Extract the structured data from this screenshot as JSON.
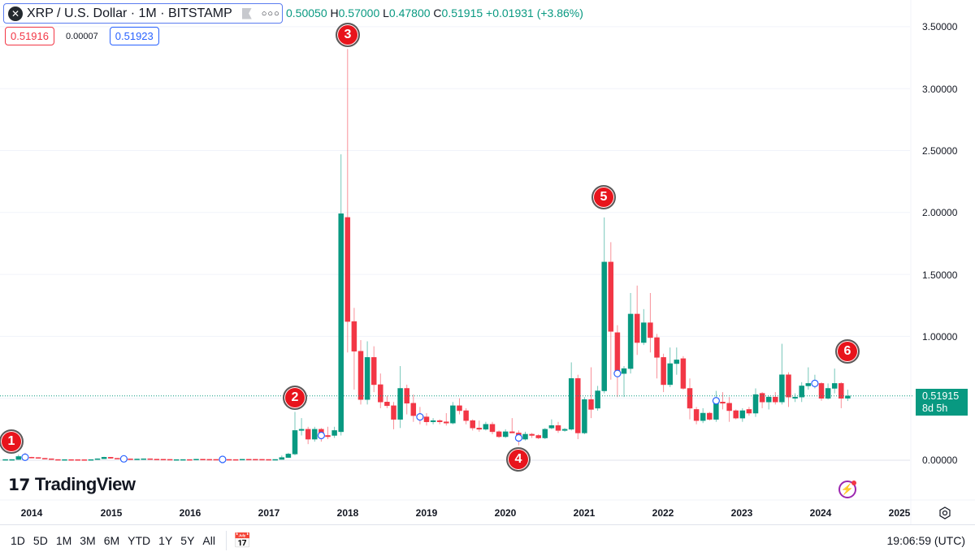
{
  "header": {
    "symbol_icon": "xrp-logo-icon",
    "title": "XRP / U.S. Dollar · 1M · BITSTAMP",
    "ohlc": {
      "o_value": "0.50050",
      "h_label": "H",
      "h_value": "0.57000",
      "l_label": "L",
      "l_value": "0.47800",
      "c_label": "C",
      "c_value": "0.51915",
      "change": "+0.01931 (+3.86%)"
    },
    "bid": "0.51916",
    "spread": "0.00007",
    "ask": "0.51923"
  },
  "price_axis": [
    "3.50000",
    "3.00000",
    "2.50000",
    "2.00000",
    "1.50000",
    "1.00000",
    "0.00000"
  ],
  "current_price": {
    "value": "0.51915",
    "countdown": "8d 5h"
  },
  "time_axis": [
    "2014",
    "2015",
    "2016",
    "2017",
    "2018",
    "2019",
    "2020",
    "2021",
    "2022",
    "2023",
    "2024",
    "2025"
  ],
  "markers": [
    "1",
    "2",
    "3",
    "4",
    "5",
    "6"
  ],
  "logo": "TradingView",
  "bottom_bar": {
    "ranges": [
      "1D",
      "5D",
      "1M",
      "3M",
      "6M",
      "YTD",
      "1Y",
      "5Y",
      "All"
    ],
    "clock": "19:06:59 (UTC)"
  },
  "colors": {
    "up": "#089981",
    "down": "#f23645",
    "accent": "#2962ff"
  },
  "chart_data": {
    "type": "candlestick",
    "interval": "1M",
    "ylim": [
      0,
      3.5
    ],
    "grid": true,
    "price_scale": "right",
    "event_circles": [
      "2013-12",
      "2015-03",
      "2016-06",
      "2017-09",
      "2018-12",
      "2020-03",
      "2021-06",
      "2022-09",
      "2023-12"
    ],
    "numbered_markers": {
      "1": "2013-10",
      "2": "2017-05",
      "3": "2018-01",
      "4": "2020-03",
      "5": "2021-04",
      "6": "2024-05"
    },
    "columns": [
      "month",
      "open",
      "high",
      "low",
      "close"
    ],
    "candles": [
      [
        "2013-09",
        0.006,
        0.007,
        0.005,
        0.006
      ],
      [
        "2013-10",
        0.006,
        0.007,
        0.005,
        0.006
      ],
      [
        "2013-11",
        0.006,
        0.045,
        0.005,
        0.03
      ],
      [
        "2013-12",
        0.03,
        0.06,
        0.015,
        0.024
      ],
      [
        "2014-01",
        0.024,
        0.028,
        0.018,
        0.022
      ],
      [
        "2014-02",
        0.022,
        0.024,
        0.014,
        0.016
      ],
      [
        "2014-03",
        0.016,
        0.018,
        0.01,
        0.012
      ],
      [
        "2014-04",
        0.012,
        0.013,
        0.005,
        0.006
      ],
      [
        "2014-05",
        0.006,
        0.007,
        0.004,
        0.005
      ],
      [
        "2014-06",
        0.005,
        0.006,
        0.004,
        0.0055
      ],
      [
        "2014-07",
        0.0055,
        0.006,
        0.0045,
        0.005
      ],
      [
        "2014-08",
        0.005,
        0.0055,
        0.004,
        0.0045
      ],
      [
        "2014-09",
        0.0045,
        0.005,
        0.0035,
        0.004
      ],
      [
        "2014-10",
        0.004,
        0.006,
        0.0038,
        0.0055
      ],
      [
        "2014-11",
        0.0055,
        0.014,
        0.005,
        0.012
      ],
      [
        "2014-12",
        0.012,
        0.028,
        0.011,
        0.024
      ],
      [
        "2015-01",
        0.024,
        0.026,
        0.013,
        0.016
      ],
      [
        "2015-02",
        0.016,
        0.018,
        0.012,
        0.014
      ],
      [
        "2015-03",
        0.014,
        0.016,
        0.01,
        0.011
      ],
      [
        "2015-04",
        0.011,
        0.012,
        0.008,
        0.009
      ],
      [
        "2015-05",
        0.009,
        0.011,
        0.008,
        0.01
      ],
      [
        "2015-06",
        0.01,
        0.013,
        0.009,
        0.012
      ],
      [
        "2015-07",
        0.012,
        0.012,
        0.008,
        0.009
      ],
      [
        "2015-08",
        0.009,
        0.01,
        0.007,
        0.008
      ],
      [
        "2015-09",
        0.008,
        0.009,
        0.006,
        0.007
      ],
      [
        "2015-10",
        0.007,
        0.0075,
        0.0045,
        0.005
      ],
      [
        "2015-11",
        0.005,
        0.006,
        0.0045,
        0.0055
      ],
      [
        "2015-12",
        0.0055,
        0.0065,
        0.005,
        0.006
      ],
      [
        "2016-01",
        0.006,
        0.0065,
        0.0055,
        0.0058
      ],
      [
        "2016-02",
        0.0058,
        0.0095,
        0.0055,
        0.0085
      ],
      [
        "2016-03",
        0.0085,
        0.009,
        0.0065,
        0.0072
      ],
      [
        "2016-04",
        0.0072,
        0.0075,
        0.0062,
        0.0068
      ],
      [
        "2016-05",
        0.0068,
        0.007,
        0.0055,
        0.006
      ],
      [
        "2016-06",
        0.006,
        0.0068,
        0.0055,
        0.0065
      ],
      [
        "2016-07",
        0.0065,
        0.007,
        0.0058,
        0.006
      ],
      [
        "2016-08",
        0.006,
        0.0065,
        0.0055,
        0.0058
      ],
      [
        "2016-09",
        0.0058,
        0.008,
        0.0055,
        0.0078
      ],
      [
        "2016-10",
        0.0078,
        0.008,
        0.0072,
        0.0075
      ],
      [
        "2016-11",
        0.0075,
        0.0085,
        0.0068,
        0.0072
      ],
      [
        "2016-12",
        0.0072,
        0.0075,
        0.006,
        0.0064
      ],
      [
        "2017-01",
        0.0064,
        0.0068,
        0.006,
        0.0063
      ],
      [
        "2017-02",
        0.0063,
        0.0068,
        0.006,
        0.0065
      ],
      [
        "2017-03",
        0.0065,
        0.038,
        0.006,
        0.022
      ],
      [
        "2017-04",
        0.022,
        0.06,
        0.02,
        0.05
      ],
      [
        "2017-05",
        0.05,
        0.39,
        0.04,
        0.24
      ],
      [
        "2017-06",
        0.24,
        0.34,
        0.2,
        0.25
      ],
      [
        "2017-07",
        0.25,
        0.27,
        0.13,
        0.17
      ],
      [
        "2017-08",
        0.17,
        0.27,
        0.15,
        0.25
      ],
      [
        "2017-09",
        0.25,
        0.26,
        0.15,
        0.2
      ],
      [
        "2017-10",
        0.2,
        0.27,
        0.17,
        0.19
      ],
      [
        "2017-11",
        0.2,
        0.27,
        0.18,
        0.24
      ],
      [
        "2017-12",
        0.23,
        2.47,
        0.2,
        1.99
      ],
      [
        "2018-01",
        1.96,
        3.32,
        0.87,
        1.12
      ],
      [
        "2018-02",
        1.12,
        1.23,
        0.57,
        0.88
      ],
      [
        "2018-03",
        0.88,
        0.97,
        0.45,
        0.49
      ],
      [
        "2018-04",
        0.49,
        0.96,
        0.45,
        0.83
      ],
      [
        "2018-05",
        0.83,
        0.92,
        0.55,
        0.61
      ],
      [
        "2018-06",
        0.61,
        0.7,
        0.42,
        0.47
      ],
      [
        "2018-07",
        0.47,
        0.52,
        0.42,
        0.44
      ],
      [
        "2018-08",
        0.44,
        0.47,
        0.25,
        0.33
      ],
      [
        "2018-09",
        0.33,
        0.76,
        0.26,
        0.58
      ],
      [
        "2018-10",
        0.58,
        0.61,
        0.37,
        0.46
      ],
      [
        "2018-11",
        0.46,
        0.53,
        0.31,
        0.36
      ],
      [
        "2018-12",
        0.36,
        0.43,
        0.29,
        0.35
      ],
      [
        "2019-01",
        0.35,
        0.38,
        0.28,
        0.31
      ],
      [
        "2019-02",
        0.31,
        0.34,
        0.29,
        0.32
      ],
      [
        "2019-03",
        0.32,
        0.33,
        0.29,
        0.31
      ],
      [
        "2019-04",
        0.31,
        0.38,
        0.28,
        0.3
      ],
      [
        "2019-05",
        0.3,
        0.47,
        0.29,
        0.44
      ],
      [
        "2019-06",
        0.44,
        0.5,
        0.37,
        0.4
      ],
      [
        "2019-07",
        0.4,
        0.42,
        0.29,
        0.32
      ],
      [
        "2019-08",
        0.32,
        0.33,
        0.24,
        0.26
      ],
      [
        "2019-09",
        0.26,
        0.32,
        0.23,
        0.25
      ],
      [
        "2019-10",
        0.25,
        0.31,
        0.24,
        0.29
      ],
      [
        "2019-11",
        0.29,
        0.31,
        0.21,
        0.23
      ],
      [
        "2019-12",
        0.23,
        0.24,
        0.18,
        0.19
      ],
      [
        "2020-01",
        0.19,
        0.25,
        0.18,
        0.23
      ],
      [
        "2020-02",
        0.23,
        0.34,
        0.22,
        0.22
      ],
      [
        "2020-03",
        0.22,
        0.24,
        0.12,
        0.18
      ],
      [
        "2020-04",
        0.17,
        0.23,
        0.16,
        0.21
      ],
      [
        "2020-05",
        0.21,
        0.22,
        0.18,
        0.2
      ],
      [
        "2020-06",
        0.2,
        0.21,
        0.17,
        0.18
      ],
      [
        "2020-07",
        0.18,
        0.26,
        0.17,
        0.25
      ],
      [
        "2020-08",
        0.26,
        0.33,
        0.25,
        0.28
      ],
      [
        "2020-09",
        0.28,
        0.31,
        0.22,
        0.24
      ],
      [
        "2020-10",
        0.24,
        0.26,
        0.23,
        0.25
      ],
      [
        "2020-11",
        0.25,
        0.79,
        0.24,
        0.66
      ],
      [
        "2020-12",
        0.66,
        0.69,
        0.17,
        0.22
      ],
      [
        "2021-01",
        0.22,
        0.51,
        0.21,
        0.49
      ],
      [
        "2021-02",
        0.49,
        0.75,
        0.34,
        0.41
      ],
      [
        "2021-03",
        0.42,
        0.6,
        0.4,
        0.56
      ],
      [
        "2021-04",
        0.56,
        1.96,
        0.54,
        1.6
      ],
      [
        "2021-05",
        1.6,
        1.76,
        0.65,
        1.04
      ],
      [
        "2021-06",
        1.03,
        1.09,
        0.51,
        0.7
      ],
      [
        "2021-07",
        0.7,
        0.76,
        0.51,
        0.74
      ],
      [
        "2021-08",
        0.74,
        1.35,
        0.7,
        1.18
      ],
      [
        "2021-09",
        1.18,
        1.41,
        0.85,
        0.95
      ],
      [
        "2021-10",
        0.95,
        1.22,
        0.93,
        1.11
      ],
      [
        "2021-11",
        1.11,
        1.35,
        0.87,
        0.99
      ],
      [
        "2021-12",
        0.99,
        1.02,
        0.66,
        0.83
      ],
      [
        "2022-01",
        0.83,
        0.86,
        0.55,
        0.61
      ],
      [
        "2022-02",
        0.61,
        0.91,
        0.59,
        0.78
      ],
      [
        "2022-03",
        0.78,
        0.91,
        0.69,
        0.81
      ],
      [
        "2022-04",
        0.82,
        0.84,
        0.57,
        0.58
      ],
      [
        "2022-05",
        0.58,
        0.66,
        0.33,
        0.42
      ],
      [
        "2022-06",
        0.41,
        0.43,
        0.29,
        0.32
      ],
      [
        "2022-07",
        0.32,
        0.42,
        0.3,
        0.38
      ],
      [
        "2022-08",
        0.38,
        0.39,
        0.32,
        0.33
      ],
      [
        "2022-09",
        0.33,
        0.56,
        0.31,
        0.48
      ],
      [
        "2022-10",
        0.47,
        0.55,
        0.41,
        0.46
      ],
      [
        "2022-11",
        0.46,
        0.51,
        0.31,
        0.4
      ],
      [
        "2022-12",
        0.4,
        0.41,
        0.33,
        0.34
      ],
      [
        "2023-01",
        0.34,
        0.42,
        0.31,
        0.4
      ],
      [
        "2023-02",
        0.41,
        0.43,
        0.36,
        0.38
      ],
      [
        "2023-03",
        0.38,
        0.58,
        0.35,
        0.53
      ],
      [
        "2023-04",
        0.54,
        0.55,
        0.42,
        0.47
      ],
      [
        "2023-05",
        0.47,
        0.52,
        0.41,
        0.51
      ],
      [
        "2023-06",
        0.51,
        0.55,
        0.45,
        0.47
      ],
      [
        "2023-07",
        0.47,
        0.94,
        0.45,
        0.69
      ],
      [
        "2023-08",
        0.69,
        0.71,
        0.43,
        0.51
      ],
      [
        "2023-09",
        0.5,
        0.54,
        0.47,
        0.51
      ],
      [
        "2023-10",
        0.51,
        0.63,
        0.47,
        0.6
      ],
      [
        "2023-11",
        0.6,
        0.75,
        0.57,
        0.62
      ],
      [
        "2023-12",
        0.62,
        0.69,
        0.58,
        0.62
      ],
      [
        "2024-01",
        0.62,
        0.63,
        0.48,
        0.5
      ],
      [
        "2024-02",
        0.5,
        0.62,
        0.49,
        0.58
      ],
      [
        "2024-03",
        0.58,
        0.74,
        0.54,
        0.62
      ],
      [
        "2024-04",
        0.62,
        0.63,
        0.42,
        0.5
      ],
      [
        "2024-05",
        0.5005,
        0.57,
        0.478,
        0.51915
      ]
    ]
  }
}
